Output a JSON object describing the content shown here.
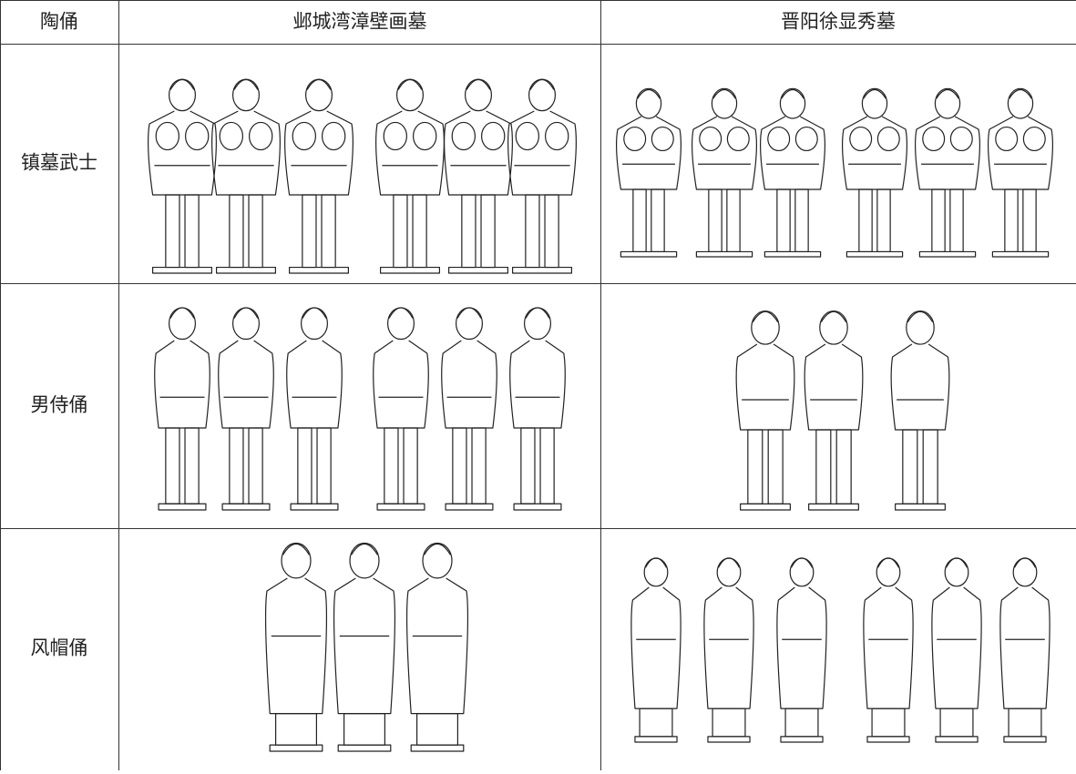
{
  "table": {
    "header": [
      "陶俑",
      "邺城湾漳壁画墓",
      "晋阳徐显秀墓"
    ],
    "rows": [
      [
        "镇墓武士"
      ],
      [
        "男侍俑"
      ],
      [
        "风帽俑"
      ]
    ]
  }
}
